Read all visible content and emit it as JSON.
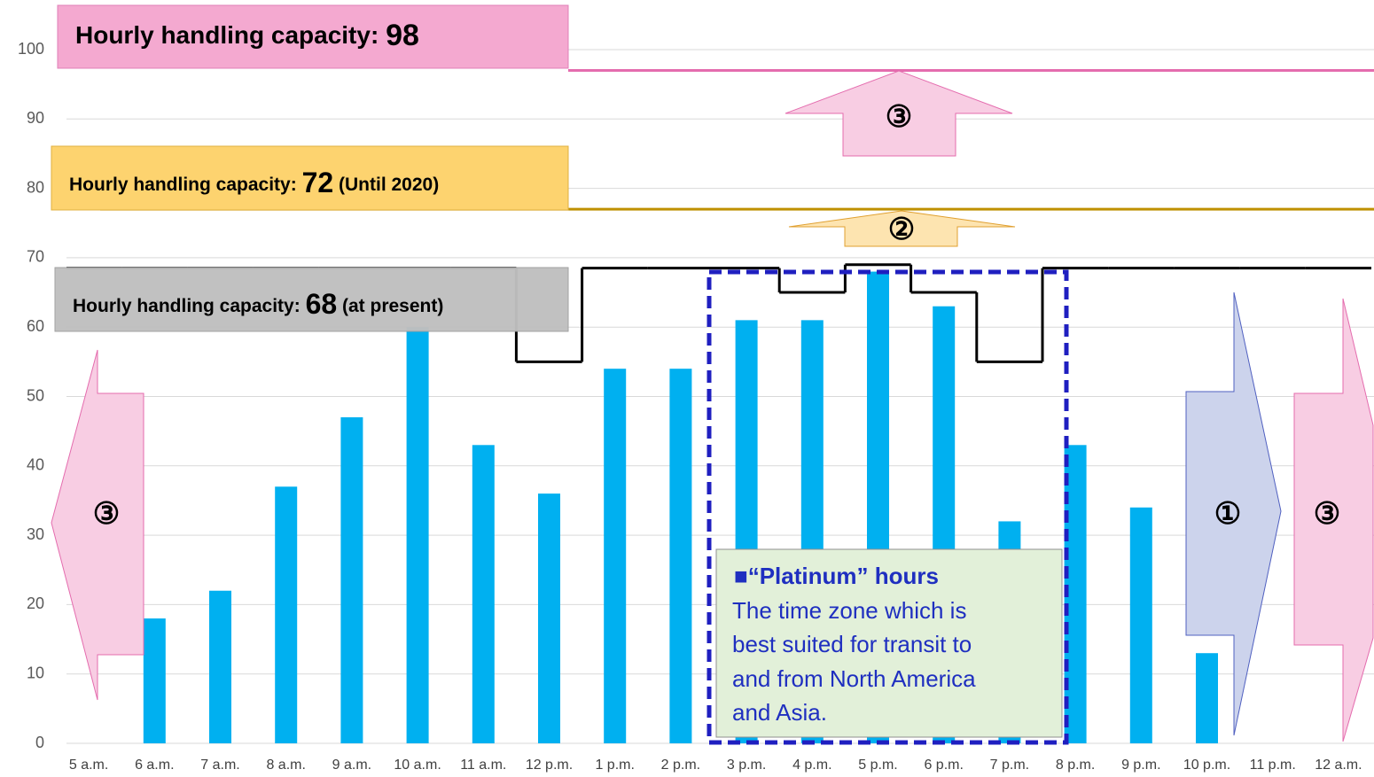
{
  "chart_data": {
    "type": "bar",
    "categories": [
      "5 a.m.",
      "6 a.m.",
      "7 a.m.",
      "8 a.m.",
      "9 a.m.",
      "10 a.m.",
      "11 a.m.",
      "12 p.m.",
      "1 p.m.",
      "2 p.m.",
      "3 p.m.",
      "4 p.m.",
      "5 p.m.",
      "6 p.m.",
      "7 p.m.",
      "8 p.m.",
      "9 p.m.",
      "10 p.m.",
      "11 p.m.",
      "12 a.m."
    ],
    "values": [
      0,
      18,
      22,
      37,
      47,
      60,
      43,
      36,
      54,
      54,
      61,
      61,
      68,
      63,
      32,
      43,
      34,
      13,
      0,
      0
    ],
    "color": "#00b0f0",
    "capacity": {
      "color": "#000000",
      "values": [
        68.5,
        68.5,
        68.5,
        68.5,
        68.5,
        68.5,
        68.5,
        55,
        68.5,
        68.5,
        68.5,
        65,
        69,
        65,
        55,
        68.5,
        68.5,
        68.5,
        68.5,
        68.5
      ]
    },
    "reference_lines": [
      {
        "value": 77,
        "color": "#bf9000"
      },
      {
        "value": 97,
        "color": "#e46cae"
      }
    ],
    "ylim": [
      0,
      100
    ],
    "yticks": [
      0,
      10,
      20,
      30,
      40,
      50,
      60,
      70,
      80,
      90,
      100
    ],
    "grid": true,
    "boxes": [
      {
        "text": "Hourly handling capacity:",
        "number": "98"
      },
      {
        "text": "Hourly handling capacity:",
        "number": "72",
        "note": "(Until 2020)"
      },
      {
        "text": "Hourly handling capacity:",
        "number": "68",
        "note": "(at present)"
      }
    ],
    "arrows": [
      "③",
      "②",
      "③",
      "①",
      "③"
    ],
    "platinum": {
      "title": "■“Platinum” hours",
      "lines": [
        "The time zone which is",
        "best suited for transit to",
        "and from North America",
        "and Asia."
      ]
    }
  }
}
